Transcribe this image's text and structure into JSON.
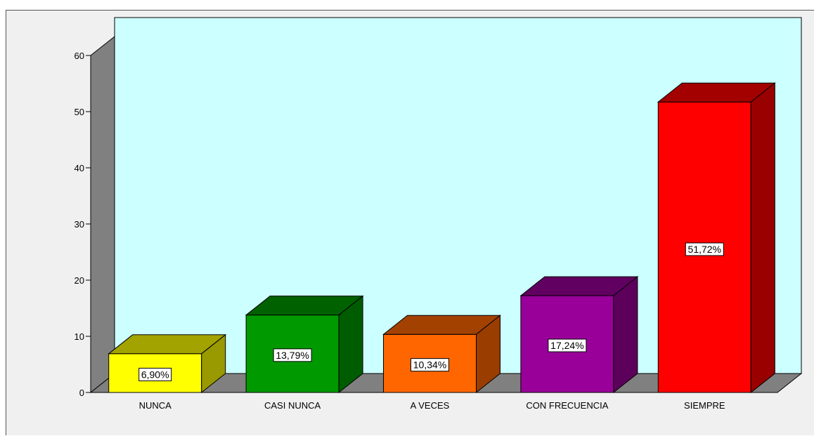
{
  "chart_data": {
    "type": "bar",
    "categories": [
      "NUNCA",
      "CASI NUNCA",
      "A VECES",
      "CON FRECUENCIA",
      "SIEMPRE"
    ],
    "values": [
      6.9,
      13.79,
      10.34,
      17.24,
      51.72
    ],
    "data_labels": [
      "6,90%",
      "13,79%",
      "10,34%",
      "17,24%",
      "51,72%"
    ],
    "yticks": [
      "0",
      "10",
      "20",
      "30",
      "40",
      "50",
      "60"
    ],
    "ylim": [
      0,
      60
    ],
    "title": "",
    "xlabel": "",
    "ylabel": "",
    "grid": false,
    "style": "3d",
    "colors": {
      "plot_background": "#ccffff",
      "outer_background": "#f0f0f0",
      "walls": "#808080",
      "bars": [
        "#ffff00",
        "#009900",
        "#ff6600",
        "#990099",
        "#ff0000"
      ],
      "bar_tops": [
        "#a3a300",
        "#006100",
        "#a34100",
        "#610061",
        "#a30000"
      ],
      "bar_sides": [
        "#999900",
        "#005c00",
        "#993d00",
        "#5c005c",
        "#990000"
      ]
    }
  }
}
